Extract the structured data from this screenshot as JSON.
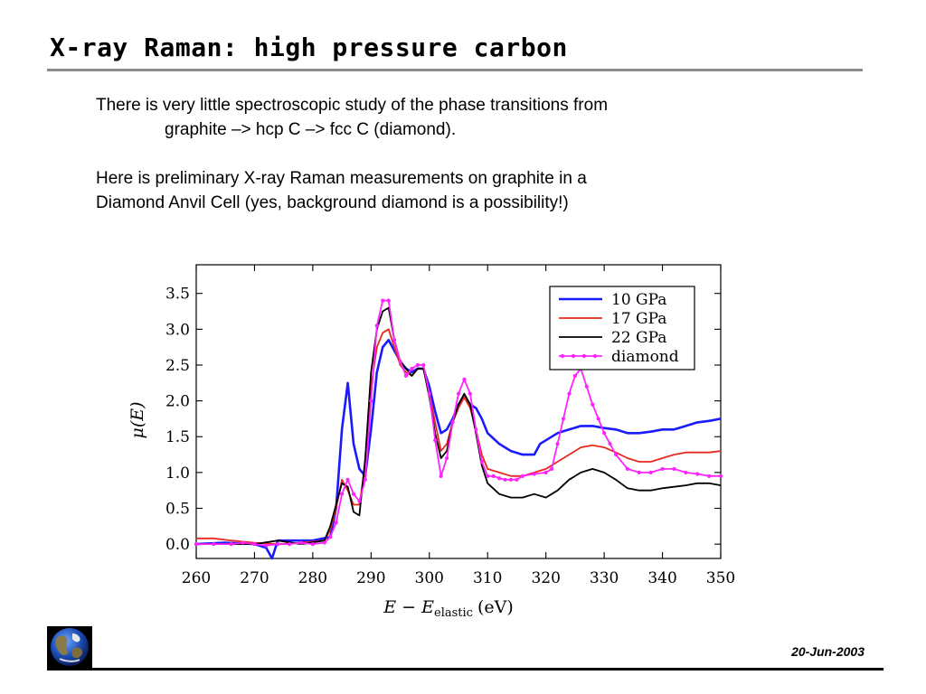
{
  "slide": {
    "title": "X-ray Raman: high pressure carbon",
    "paragraph1_line1": "There is very little spectroscopic study of the phase transitions from",
    "paragraph1_line2": "graphite –> hcp C –> fcc C (diamond).",
    "paragraph2_line1": "Here is preliminary X-ray Raman measurements on graphite in a",
    "paragraph2_line2": "Diamond Anvil Cell (yes, background diamond is a possibility!)",
    "footer_date": "20-Jun-2003",
    "logo_icon": "earth-globe-icon"
  },
  "chart_data": {
    "type": "line",
    "title": "",
    "xlabel": "E − E",
    "xlabel_subscript": "elastic",
    "xlabel_unit": "(eV)",
    "ylabel": "μ(E)",
    "xlim": [
      260,
      350
    ],
    "ylim": [
      -0.2,
      3.9
    ],
    "xticks": [
      260,
      270,
      280,
      290,
      300,
      310,
      320,
      330,
      340,
      350
    ],
    "yticks": [
      0.0,
      0.5,
      1.0,
      1.5,
      2.0,
      2.5,
      3.0,
      3.5
    ],
    "xtick_labels": [
      "260",
      "270",
      "280",
      "290",
      "300",
      "310",
      "320",
      "330",
      "340",
      "350"
    ],
    "ytick_labels": [
      "0.0",
      "0.5",
      "1.0",
      "1.5",
      "2.0",
      "2.5",
      "3.0",
      "3.5"
    ],
    "grid": false,
    "legend_position": "top-right",
    "series": [
      {
        "name": "10 GPa",
        "color": "#1a1aff",
        "markers": false,
        "x": [
          260,
          265,
          270,
          272,
          273,
          274,
          276,
          280,
          283,
          284,
          285,
          286,
          287,
          288,
          289,
          290,
          291,
          292,
          293,
          294,
          295,
          296,
          297,
          298,
          299,
          300,
          301,
          302,
          303,
          304,
          305,
          306,
          307,
          308,
          309,
          310,
          312,
          314,
          316,
          318,
          319,
          320,
          322,
          324,
          326,
          328,
          330,
          332,
          334,
          336,
          338,
          340,
          342,
          344,
          346,
          348,
          350
        ],
        "y": [
          0.0,
          0.02,
          0.0,
          -0.05,
          -0.2,
          0.05,
          0.05,
          0.05,
          0.1,
          0.5,
          1.6,
          2.25,
          1.4,
          1.05,
          0.95,
          1.6,
          2.4,
          2.75,
          2.85,
          2.7,
          2.55,
          2.45,
          2.4,
          2.45,
          2.45,
          2.2,
          1.85,
          1.55,
          1.6,
          1.75,
          1.95,
          2.05,
          1.95,
          1.9,
          1.75,
          1.55,
          1.4,
          1.3,
          1.25,
          1.25,
          1.4,
          1.45,
          1.55,
          1.6,
          1.65,
          1.65,
          1.62,
          1.6,
          1.55,
          1.55,
          1.57,
          1.6,
          1.6,
          1.65,
          1.7,
          1.72,
          1.75
        ]
      },
      {
        "name": "17 GPa",
        "color": "#e8281e",
        "markers": false,
        "x": [
          260,
          263,
          266,
          270,
          274,
          278,
          282,
          283,
          284,
          285,
          286,
          287,
          288,
          289,
          290,
          291,
          292,
          293,
          294,
          295,
          296,
          297,
          298,
          299,
          300,
          301,
          302,
          303,
          304,
          305,
          306,
          307,
          308,
          309,
          310,
          312,
          314,
          316,
          318,
          320,
          322,
          324,
          326,
          328,
          330,
          332,
          334,
          336,
          338,
          340,
          342,
          344,
          346,
          348,
          350
        ],
        "y": [
          0.08,
          0.08,
          0.05,
          0.02,
          0.0,
          0.02,
          0.05,
          0.2,
          0.5,
          0.9,
          0.75,
          0.55,
          0.55,
          1.1,
          2.2,
          2.75,
          2.95,
          3.0,
          2.75,
          2.5,
          2.4,
          2.35,
          2.45,
          2.45,
          2.1,
          1.7,
          1.3,
          1.4,
          1.7,
          1.9,
          2.05,
          1.9,
          1.6,
          1.25,
          1.05,
          1.0,
          0.95,
          0.95,
          1.0,
          1.05,
          1.15,
          1.25,
          1.35,
          1.38,
          1.35,
          1.28,
          1.2,
          1.15,
          1.15,
          1.2,
          1.25,
          1.28,
          1.28,
          1.28,
          1.3
        ]
      },
      {
        "name": "22 GPa",
        "color": "#000000",
        "markers": false,
        "x": [
          260,
          265,
          270,
          274,
          278,
          282,
          283,
          284,
          285,
          286,
          287,
          288,
          289,
          290,
          291,
          292,
          293,
          294,
          295,
          296,
          297,
          298,
          299,
          300,
          301,
          302,
          303,
          304,
          305,
          306,
          307,
          308,
          309,
          310,
          312,
          314,
          316,
          318,
          320,
          322,
          324,
          326,
          328,
          330,
          332,
          334,
          336,
          338,
          340,
          342,
          344,
          346,
          348,
          350
        ],
        "y": [
          0.0,
          0.0,
          0.0,
          0.05,
          0.0,
          0.05,
          0.25,
          0.55,
          0.85,
          0.8,
          0.45,
          0.4,
          1.2,
          2.4,
          3.0,
          3.25,
          3.3,
          2.85,
          2.55,
          2.45,
          2.35,
          2.45,
          2.45,
          2.05,
          1.55,
          1.2,
          1.3,
          1.7,
          1.95,
          2.1,
          1.95,
          1.55,
          1.1,
          0.85,
          0.7,
          0.65,
          0.65,
          0.7,
          0.65,
          0.75,
          0.9,
          1.0,
          1.05,
          1.0,
          0.9,
          0.78,
          0.75,
          0.75,
          0.78,
          0.8,
          0.82,
          0.85,
          0.85,
          0.82
        ]
      },
      {
        "name": "diamond",
        "color": "#ff22ff",
        "markers": true,
        "x": [
          260,
          263,
          266,
          268,
          270,
          272,
          274,
          276,
          278,
          280,
          282,
          283,
          284,
          285,
          286,
          287,
          288,
          289,
          290,
          291,
          292,
          293,
          294,
          295,
          296,
          297,
          298,
          299,
          300,
          301,
          302,
          303,
          304,
          305,
          306,
          307,
          308,
          309,
          310,
          311,
          312,
          313,
          314,
          315,
          316,
          318,
          320,
          321,
          322,
          323,
          324,
          325,
          326,
          327,
          328,
          329,
          330,
          331,
          332,
          334,
          336,
          338,
          340,
          342,
          344,
          346,
          348,
          350
        ],
        "y": [
          0.0,
          0.0,
          0.0,
          0.02,
          0.0,
          -0.02,
          0.0,
          0.0,
          0.02,
          0.0,
          0.02,
          0.1,
          0.3,
          0.7,
          0.9,
          0.7,
          0.6,
          0.9,
          2.0,
          3.05,
          3.4,
          3.4,
          2.85,
          2.55,
          2.35,
          2.45,
          2.5,
          2.5,
          2.1,
          1.45,
          0.95,
          1.2,
          1.7,
          2.1,
          2.3,
          2.1,
          1.6,
          1.15,
          0.95,
          0.95,
          0.92,
          0.9,
          0.9,
          0.9,
          0.95,
          0.98,
          1.0,
          1.05,
          1.4,
          1.75,
          2.1,
          2.35,
          2.45,
          2.2,
          1.95,
          1.75,
          1.55,
          1.4,
          1.25,
          1.05,
          1.0,
          1.0,
          1.05,
          1.05,
          1.0,
          0.98,
          0.95,
          0.95
        ]
      }
    ]
  }
}
